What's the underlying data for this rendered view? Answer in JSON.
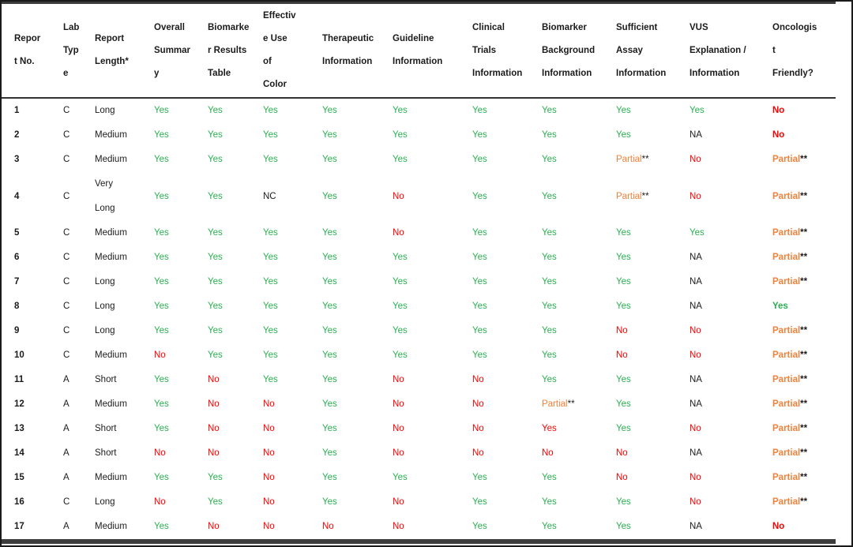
{
  "colors": {
    "green": "#29b050",
    "red": "#ff0000",
    "orange": "#f4813b",
    "black": "#1b1b1b"
  },
  "table": {
    "columns": [
      {
        "key": "report_no",
        "label": "Repor\nt No."
      },
      {
        "key": "lab_type",
        "label": "Lab\nTyp\ne"
      },
      {
        "key": "report_length",
        "label": "Report\nLength*"
      },
      {
        "key": "overall_summary",
        "label": "Overall\nSummar\ny"
      },
      {
        "key": "biomarker_results_table",
        "label": "Biomarke\nr Results\nTable"
      },
      {
        "key": "effective_use_of_color",
        "label": "Effectiv\ne Use\nof\nColor"
      },
      {
        "key": "therapeutic_information",
        "label": "Therapeutic\nInformation"
      },
      {
        "key": "guideline_information",
        "label": "Guideline\nInformation"
      },
      {
        "key": "clinical_trials_information",
        "label": "Clinical\nTrials\nInformation"
      },
      {
        "key": "biomarker_background_information",
        "label": "Biomarker\nBackground\nInformation"
      },
      {
        "key": "sufficient_assay_information",
        "label": "Sufficient\nAssay\nInformation"
      },
      {
        "key": "vus_explanation_information",
        "label": "VUS\nExplanation /\nInformation"
      },
      {
        "key": "oncologist_friendly",
        "label": "Oncologis\nt\nFriendly?"
      }
    ],
    "rows": [
      {
        "report_no": "1",
        "lab_type": "C",
        "report_length": "Long",
        "values": [
          {
            "t": "Yes",
            "c": "green"
          },
          {
            "t": "Yes",
            "c": "green"
          },
          {
            "t": "Yes",
            "c": "green"
          },
          {
            "t": "Yes",
            "c": "green"
          },
          {
            "t": "Yes",
            "c": "green"
          },
          {
            "t": "Yes",
            "c": "green"
          },
          {
            "t": "Yes",
            "c": "green"
          },
          {
            "t": "Yes",
            "c": "green"
          },
          {
            "t": "Yes",
            "c": "green"
          },
          {
            "t": "No",
            "c": "red",
            "b": true
          }
        ]
      },
      {
        "report_no": "2",
        "lab_type": "C",
        "report_length": "Medium",
        "values": [
          {
            "t": "Yes",
            "c": "green"
          },
          {
            "t": "Yes",
            "c": "green"
          },
          {
            "t": "Yes",
            "c": "green"
          },
          {
            "t": "Yes",
            "c": "green"
          },
          {
            "t": "Yes",
            "c": "green"
          },
          {
            "t": "Yes",
            "c": "green"
          },
          {
            "t": "Yes",
            "c": "green"
          },
          {
            "t": "Yes",
            "c": "green"
          },
          {
            "t": "NA",
            "c": "black"
          },
          {
            "t": "No",
            "c": "red",
            "b": true
          }
        ]
      },
      {
        "report_no": "3",
        "lab_type": "C",
        "report_length": "Medium",
        "values": [
          {
            "t": "Yes",
            "c": "green"
          },
          {
            "t": "Yes",
            "c": "green"
          },
          {
            "t": "Yes",
            "c": "green"
          },
          {
            "t": "Yes",
            "c": "green"
          },
          {
            "t": "Yes",
            "c": "green"
          },
          {
            "t": "Yes",
            "c": "green"
          },
          {
            "t": "Yes",
            "c": "green"
          },
          {
            "t": "Partial",
            "c": "orange",
            "s": "**"
          },
          {
            "t": "No",
            "c": "red"
          },
          {
            "t": "Partial",
            "c": "orange",
            "s": "**",
            "b": true
          }
        ]
      },
      {
        "report_no": "4",
        "lab_type": "C",
        "report_length": "Very\nLong",
        "values": [
          {
            "t": "Yes",
            "c": "green"
          },
          {
            "t": "Yes",
            "c": "green"
          },
          {
            "t": "NC",
            "c": "black"
          },
          {
            "t": "Yes",
            "c": "green"
          },
          {
            "t": "No",
            "c": "red"
          },
          {
            "t": "Yes",
            "c": "green"
          },
          {
            "t": "Yes",
            "c": "green"
          },
          {
            "t": "Partial",
            "c": "orange",
            "s": "**"
          },
          {
            "t": "No",
            "c": "red"
          },
          {
            "t": "Partial",
            "c": "orange",
            "s": "**",
            "b": true
          }
        ]
      },
      {
        "report_no": "5",
        "lab_type": "C",
        "report_length": "Medium",
        "values": [
          {
            "t": "Yes",
            "c": "green"
          },
          {
            "t": "Yes",
            "c": "green"
          },
          {
            "t": "Yes",
            "c": "green"
          },
          {
            "t": "Yes",
            "c": "green"
          },
          {
            "t": "No",
            "c": "red"
          },
          {
            "t": "Yes",
            "c": "green"
          },
          {
            "t": "Yes",
            "c": "green"
          },
          {
            "t": "Yes",
            "c": "green"
          },
          {
            "t": "Yes",
            "c": "green"
          },
          {
            "t": "Partial",
            "c": "orange",
            "s": "**",
            "b": true
          }
        ]
      },
      {
        "report_no": "6",
        "lab_type": "C",
        "report_length": "Medium",
        "values": [
          {
            "t": "Yes",
            "c": "green"
          },
          {
            "t": "Yes",
            "c": "green"
          },
          {
            "t": "Yes",
            "c": "green"
          },
          {
            "t": "Yes",
            "c": "green"
          },
          {
            "t": "Yes",
            "c": "green"
          },
          {
            "t": "Yes",
            "c": "green"
          },
          {
            "t": "Yes",
            "c": "green"
          },
          {
            "t": "Yes",
            "c": "green"
          },
          {
            "t": "NA",
            "c": "black"
          },
          {
            "t": "Partial",
            "c": "orange",
            "s": "**",
            "b": true
          }
        ]
      },
      {
        "report_no": "7",
        "lab_type": "C",
        "report_length": "Long",
        "values": [
          {
            "t": "Yes",
            "c": "green"
          },
          {
            "t": "Yes",
            "c": "green"
          },
          {
            "t": "Yes",
            "c": "green"
          },
          {
            "t": "Yes",
            "c": "green"
          },
          {
            "t": "Yes",
            "c": "green"
          },
          {
            "t": "Yes",
            "c": "green"
          },
          {
            "t": "Yes",
            "c": "green"
          },
          {
            "t": "Yes",
            "c": "green"
          },
          {
            "t": "NA",
            "c": "black"
          },
          {
            "t": "Partial",
            "c": "orange",
            "s": "**",
            "b": true
          }
        ]
      },
      {
        "report_no": "8",
        "lab_type": "C",
        "report_length": "Long",
        "values": [
          {
            "t": "Yes",
            "c": "green"
          },
          {
            "t": "Yes",
            "c": "green"
          },
          {
            "t": "Yes",
            "c": "green"
          },
          {
            "t": "Yes",
            "c": "green"
          },
          {
            "t": "Yes",
            "c": "green"
          },
          {
            "t": "Yes",
            "c": "green"
          },
          {
            "t": "Yes",
            "c": "green"
          },
          {
            "t": "Yes",
            "c": "green"
          },
          {
            "t": "NA",
            "c": "black"
          },
          {
            "t": "Yes",
            "c": "green",
            "b": true
          }
        ]
      },
      {
        "report_no": "9",
        "lab_type": "C",
        "report_length": "Long",
        "values": [
          {
            "t": "Yes",
            "c": "green"
          },
          {
            "t": "Yes",
            "c": "green"
          },
          {
            "t": "Yes",
            "c": "green"
          },
          {
            "t": "Yes",
            "c": "green"
          },
          {
            "t": "Yes",
            "c": "green"
          },
          {
            "t": "Yes",
            "c": "green"
          },
          {
            "t": "Yes",
            "c": "green"
          },
          {
            "t": "No",
            "c": "red"
          },
          {
            "t": "No",
            "c": "red"
          },
          {
            "t": "Partial",
            "c": "orange",
            "s": "**",
            "b": true
          }
        ]
      },
      {
        "report_no": "10",
        "lab_type": "C",
        "report_length": "Medium",
        "values": [
          {
            "t": "No",
            "c": "red"
          },
          {
            "t": "Yes",
            "c": "green"
          },
          {
            "t": "Yes",
            "c": "green"
          },
          {
            "t": "Yes",
            "c": "green"
          },
          {
            "t": "Yes",
            "c": "green"
          },
          {
            "t": "Yes",
            "c": "green"
          },
          {
            "t": "Yes",
            "c": "green"
          },
          {
            "t": "No",
            "c": "red"
          },
          {
            "t": "No",
            "c": "red"
          },
          {
            "t": "Partial",
            "c": "orange",
            "s": "**",
            "b": true
          }
        ]
      },
      {
        "report_no": "11",
        "lab_type": "A",
        "report_length": "Short",
        "values": [
          {
            "t": "Yes",
            "c": "green"
          },
          {
            "t": "No",
            "c": "red"
          },
          {
            "t": "Yes",
            "c": "green"
          },
          {
            "t": "Yes",
            "c": "green"
          },
          {
            "t": "No",
            "c": "red"
          },
          {
            "t": "No",
            "c": "red"
          },
          {
            "t": "Yes",
            "c": "green"
          },
          {
            "t": "Yes",
            "c": "green"
          },
          {
            "t": "NA",
            "c": "black"
          },
          {
            "t": "Partial",
            "c": "orange",
            "s": "**",
            "b": true
          }
        ]
      },
      {
        "report_no": "12",
        "lab_type": "A",
        "report_length": "Medium",
        "values": [
          {
            "t": "Yes",
            "c": "green"
          },
          {
            "t": "No",
            "c": "red"
          },
          {
            "t": "No",
            "c": "red"
          },
          {
            "t": "Yes",
            "c": "green"
          },
          {
            "t": "No",
            "c": "red"
          },
          {
            "t": "No",
            "c": "red"
          },
          {
            "t": "Partial",
            "c": "orange",
            "s": "**"
          },
          {
            "t": "Yes",
            "c": "green"
          },
          {
            "t": "NA",
            "c": "black"
          },
          {
            "t": "Partial",
            "c": "orange",
            "s": "**",
            "b": true
          }
        ]
      },
      {
        "report_no": "13",
        "lab_type": "A",
        "report_length": "Short",
        "values": [
          {
            "t": "Yes",
            "c": "green"
          },
          {
            "t": "No",
            "c": "red"
          },
          {
            "t": "No",
            "c": "red"
          },
          {
            "t": "Yes",
            "c": "green"
          },
          {
            "t": "No",
            "c": "red"
          },
          {
            "t": "No",
            "c": "red"
          },
          {
            "t": "Yes",
            "c": "red"
          },
          {
            "t": "Yes",
            "c": "green"
          },
          {
            "t": "No",
            "c": "red"
          },
          {
            "t": "Partial",
            "c": "orange",
            "s": "**",
            "b": true
          }
        ]
      },
      {
        "report_no": "14",
        "lab_type": "A",
        "report_length": "Short",
        "values": [
          {
            "t": "No",
            "c": "red"
          },
          {
            "t": "No",
            "c": "red"
          },
          {
            "t": "No",
            "c": "red"
          },
          {
            "t": "Yes",
            "c": "green"
          },
          {
            "t": "No",
            "c": "red"
          },
          {
            "t": "No",
            "c": "red"
          },
          {
            "t": "No",
            "c": "red"
          },
          {
            "t": "No",
            "c": "red"
          },
          {
            "t": "NA",
            "c": "black"
          },
          {
            "t": "Partial",
            "c": "orange",
            "s": "**",
            "b": true
          }
        ]
      },
      {
        "report_no": "15",
        "lab_type": "A",
        "report_length": "Medium",
        "values": [
          {
            "t": "Yes",
            "c": "green"
          },
          {
            "t": "Yes",
            "c": "green"
          },
          {
            "t": "No",
            "c": "red"
          },
          {
            "t": "Yes",
            "c": "green"
          },
          {
            "t": "Yes",
            "c": "green"
          },
          {
            "t": "Yes",
            "c": "green"
          },
          {
            "t": "Yes",
            "c": "green"
          },
          {
            "t": "No",
            "c": "red"
          },
          {
            "t": "No",
            "c": "red"
          },
          {
            "t": "Partial",
            "c": "orange",
            "s": "**",
            "b": true
          }
        ]
      },
      {
        "report_no": "16",
        "lab_type": "C",
        "report_length": "Long",
        "values": [
          {
            "t": "No",
            "c": "red"
          },
          {
            "t": "Yes",
            "c": "green"
          },
          {
            "t": "No",
            "c": "red"
          },
          {
            "t": "Yes",
            "c": "green"
          },
          {
            "t": "No",
            "c": "red"
          },
          {
            "t": "Yes",
            "c": "green"
          },
          {
            "t": "Yes",
            "c": "green"
          },
          {
            "t": "Yes",
            "c": "green"
          },
          {
            "t": "No",
            "c": "red"
          },
          {
            "t": "Partial",
            "c": "orange",
            "s": "**",
            "b": true
          }
        ]
      },
      {
        "report_no": "17",
        "lab_type": "A",
        "report_length": "Medium",
        "values": [
          {
            "t": "Yes",
            "c": "green"
          },
          {
            "t": "No",
            "c": "red"
          },
          {
            "t": "No",
            "c": "red"
          },
          {
            "t": "No",
            "c": "red"
          },
          {
            "t": "No",
            "c": "red"
          },
          {
            "t": "Yes",
            "c": "green"
          },
          {
            "t": "Yes",
            "c": "green"
          },
          {
            "t": "Yes",
            "c": "green"
          },
          {
            "t": "NA",
            "c": "black"
          },
          {
            "t": "No",
            "c": "red",
            "b": true
          }
        ]
      }
    ]
  }
}
